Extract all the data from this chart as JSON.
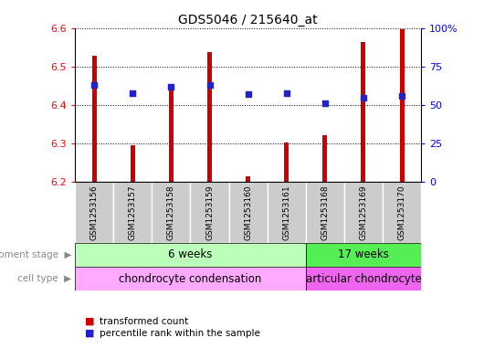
{
  "title": "GDS5046 / 215640_at",
  "samples": [
    "GSM1253156",
    "GSM1253157",
    "GSM1253158",
    "GSM1253159",
    "GSM1253160",
    "GSM1253161",
    "GSM1253168",
    "GSM1253169",
    "GSM1253170"
  ],
  "transformed_count": [
    6.53,
    6.295,
    6.445,
    6.54,
    6.213,
    6.302,
    6.322,
    6.565,
    6.598
  ],
  "percentile_rank": [
    63,
    58,
    62,
    63,
    57,
    58,
    51,
    55,
    56
  ],
  "ylim_left": [
    6.2,
    6.6
  ],
  "ylim_right": [
    0,
    100
  ],
  "yticks_left": [
    6.2,
    6.3,
    6.4,
    6.5,
    6.6
  ],
  "yticks_right": [
    0,
    25,
    50,
    75,
    100
  ],
  "bar_color": "#cc0000",
  "dot_color": "#2222cc",
  "dev_stage_groups": [
    {
      "label": "6 weeks",
      "start": 0,
      "end": 5,
      "color": "#bbffbb"
    },
    {
      "label": "17 weeks",
      "start": 6,
      "end": 8,
      "color": "#55ee55"
    }
  ],
  "cell_type_groups": [
    {
      "label": "chondrocyte condensation",
      "start": 0,
      "end": 5,
      "color": "#ffaaff"
    },
    {
      "label": "articular chondrocyte",
      "start": 6,
      "end": 8,
      "color": "#ee66ee"
    }
  ],
  "legend_bar_label": "transformed count",
  "legend_dot_label": "percentile rank within the sample",
  "dev_stage_label": "development stage",
  "cell_type_label": "cell type",
  "bar_width": 0.12,
  "background_color": "#ffffff",
  "sample_box_color": "#cccccc",
  "arrow_color": "#888888"
}
